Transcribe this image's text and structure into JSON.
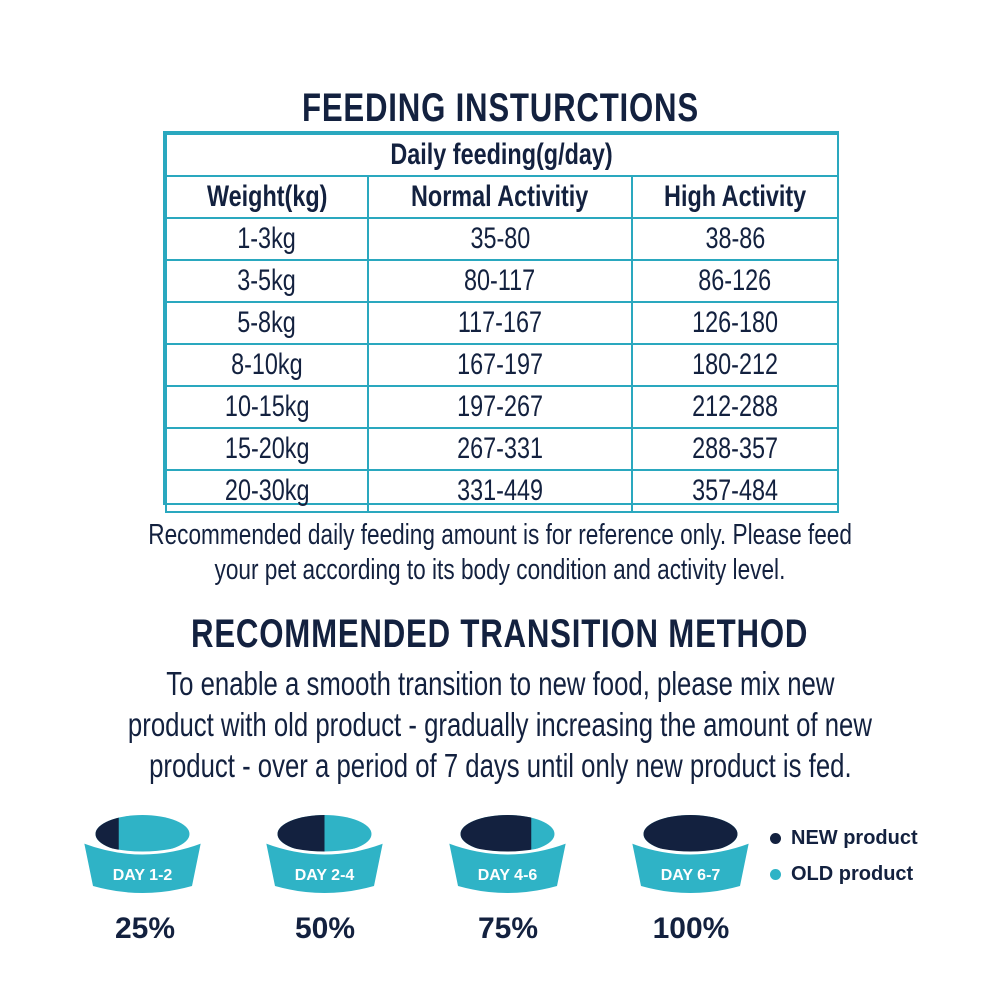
{
  "feeding": {
    "title": "FEEDING INSTURCTIONS",
    "table_caption": "Daily feeding(g/day)",
    "headers": [
      "Weight(kg)",
      "Normal Activitiy",
      "High Activity"
    ],
    "rows": [
      [
        "1-3kg",
        "35-80",
        "38-86"
      ],
      [
        "3-5kg",
        "80-117",
        "86-126"
      ],
      [
        "5-8kg",
        "117-167",
        "126-180"
      ],
      [
        "8-10kg",
        "167-197",
        "180-212"
      ],
      [
        "10-15kg",
        "197-267",
        "212-288"
      ],
      [
        "15-20kg",
        "267-331",
        "288-357"
      ],
      [
        "20-30kg",
        "331-449",
        "357-484"
      ]
    ],
    "note_line1": "Recommended daily feeding amount is for reference only. Please feed",
    "note_line2": "your pet according to its body condition and activity level."
  },
  "transition": {
    "title": "RECOMMENDED TRANSITION METHOD",
    "para_line1": "To enable a smooth transition to new food, please mix new",
    "para_line2": "product with old product - gradually increasing the amount of new",
    "para_line3": "product - over a period of 7 days until only new product is fed.",
    "bowls": [
      {
        "day": "DAY 1-2",
        "percent": "25%",
        "new_fraction": 0.25
      },
      {
        "day": "DAY 2-4",
        "percent": "50%",
        "new_fraction": 0.5
      },
      {
        "day": "DAY 4-6",
        "percent": "75%",
        "new_fraction": 0.75
      },
      {
        "day": "DAY 6-7",
        "percent": "100%",
        "new_fraction": 1.0
      }
    ],
    "legend": [
      {
        "label": "NEW product",
        "color": "#13213f"
      },
      {
        "label": "OLD product",
        "color": "#2fb3c6"
      }
    ]
  },
  "colors": {
    "navy": "#13213f",
    "teal": "#2fb3c6",
    "border": "#2aa8bf"
  }
}
